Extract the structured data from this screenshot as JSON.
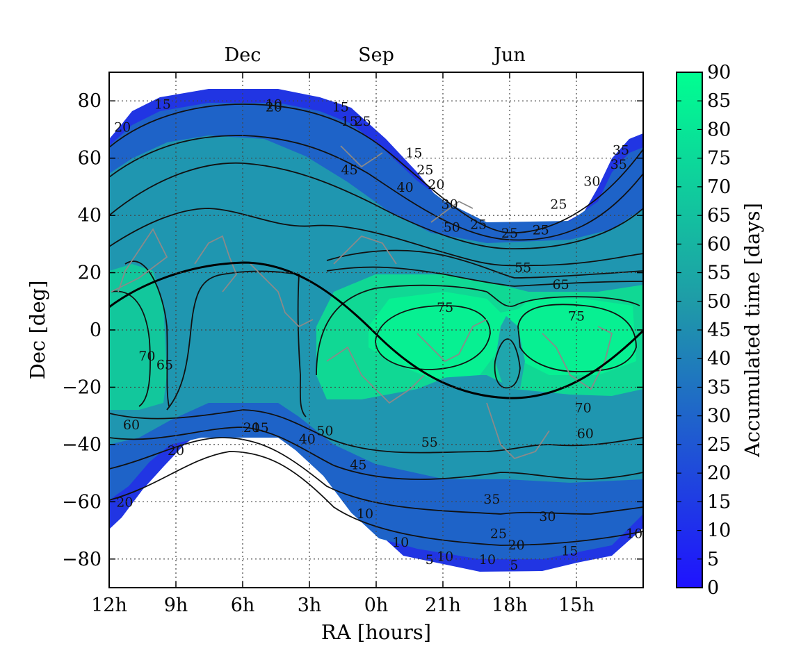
{
  "chart_data": {
    "type": "heatmap",
    "title": "",
    "xlabel": "RA [hours]",
    "ylabel": "Dec [deg]",
    "colorbar_label": "Accumulated time [days]",
    "x_direction": "decreasing",
    "xlim": [
      12,
      -12
    ],
    "ylim": [
      -90,
      90
    ],
    "x_ticks": [
      {
        "value": 12,
        "label": "12h"
      },
      {
        "value": 9,
        "label": "9h"
      },
      {
        "value": 6,
        "label": "6h"
      },
      {
        "value": 3,
        "label": "3h"
      },
      {
        "value": 0,
        "label": "0h"
      },
      {
        "value": -3,
        "label": "21h"
      },
      {
        "value": -6,
        "label": "18h"
      },
      {
        "value": -9,
        "label": "15h"
      }
    ],
    "y_ticks": [
      {
        "value": 80,
        "label": "80"
      },
      {
        "value": 60,
        "label": "60"
      },
      {
        "value": 40,
        "label": "40"
      },
      {
        "value": 20,
        "label": "20"
      },
      {
        "value": 0,
        "label": "0"
      },
      {
        "value": -20,
        "label": "−20"
      },
      {
        "value": -40,
        "label": "−40"
      },
      {
        "value": -60,
        "label": "−60"
      },
      {
        "value": -80,
        "label": "−80"
      }
    ],
    "top_ticks": [
      {
        "value": 6,
        "label": "Dec"
      },
      {
        "value": 0,
        "label": "Sep"
      },
      {
        "value": -6,
        "label": "Jun"
      }
    ],
    "colorbar": {
      "min": 0,
      "max": 90,
      "step": 5,
      "ticks": [
        "90",
        "85",
        "80",
        "75",
        "70",
        "65",
        "60",
        "55",
        "50",
        "45",
        "40",
        "35",
        "30",
        "25",
        "20",
        "15",
        "10",
        "5",
        "0"
      ],
      "color_low": "#1f12ff",
      "color_mid": "#1f9aa8",
      "color_high": "#00ff91"
    },
    "grid": true,
    "contour_levels": [
      5,
      10,
      15,
      20,
      25,
      30,
      35,
      40,
      45,
      50,
      55,
      60,
      65,
      70,
      75
    ],
    "contour_labels": [
      {
        "x": 4.6,
        "y": 79,
        "text": "10"
      },
      {
        "x": 4.6,
        "y": 78,
        "text": "20"
      },
      {
        "x": 9.6,
        "y": 79,
        "text": "15"
      },
      {
        "x": 11.4,
        "y": 71,
        "text": "20"
      },
      {
        "x": 1.6,
        "y": 78,
        "text": "15"
      },
      {
        "x": 1.2,
        "y": 73,
        "text": "15"
      },
      {
        "x": 0.6,
        "y": 73,
        "text": "25"
      },
      {
        "x": 1.2,
        "y": 56,
        "text": "45"
      },
      {
        "x": -1.3,
        "y": 50,
        "text": "40"
      },
      {
        "x": -1.7,
        "y": 62,
        "text": "15"
      },
      {
        "x": -2.2,
        "y": 56,
        "text": "25"
      },
      {
        "x": -2.7,
        "y": 51,
        "text": "20"
      },
      {
        "x": -3.3,
        "y": 44,
        "text": "30"
      },
      {
        "x": -4.6,
        "y": 37,
        "text": "25"
      },
      {
        "x": -6.0,
        "y": 34,
        "text": "25"
      },
      {
        "x": -7.4,
        "y": 35,
        "text": "25"
      },
      {
        "x": -8.2,
        "y": 44,
        "text": "25"
      },
      {
        "x": -9.7,
        "y": 52,
        "text": "30"
      },
      {
        "x": -10.9,
        "y": 58,
        "text": "35"
      },
      {
        "x": -11.0,
        "y": 63,
        "text": "35"
      },
      {
        "x": -3.4,
        "y": 36,
        "text": "50"
      },
      {
        "x": -6.6,
        "y": 22,
        "text": "55"
      },
      {
        "x": -8.3,
        "y": 16,
        "text": "65"
      },
      {
        "x": -3.1,
        "y": 8,
        "text": "75"
      },
      {
        "x": -9.0,
        "y": 5,
        "text": "75"
      },
      {
        "x": 10.3,
        "y": -9,
        "text": "70"
      },
      {
        "x": 9.5,
        "y": -12,
        "text": "65"
      },
      {
        "x": 11.0,
        "y": -33,
        "text": "60"
      },
      {
        "x": 9.0,
        "y": -42,
        "text": "20"
      },
      {
        "x": 5.6,
        "y": -34,
        "text": "20"
      },
      {
        "x": 5.2,
        "y": -34,
        "text": "15"
      },
      {
        "x": 3.1,
        "y": -38,
        "text": "40"
      },
      {
        "x": 2.3,
        "y": -35,
        "text": "50"
      },
      {
        "x": -2.4,
        "y": -39,
        "text": "55"
      },
      {
        "x": 0.8,
        "y": -47,
        "text": "45"
      },
      {
        "x": -9.3,
        "y": -27,
        "text": "70"
      },
      {
        "x": -9.4,
        "y": -36,
        "text": "60"
      },
      {
        "x": -5.2,
        "y": -59,
        "text": "35"
      },
      {
        "x": -7.7,
        "y": -65,
        "text": "30"
      },
      {
        "x": -5.5,
        "y": -71,
        "text": "25"
      },
      {
        "x": -6.3,
        "y": -75,
        "text": "20"
      },
      {
        "x": -8.7,
        "y": -77,
        "text": "15"
      },
      {
        "x": -5.0,
        "y": -80,
        "text": "10"
      },
      {
        "x": -6.2,
        "y": -82,
        "text": "5"
      },
      {
        "x": -3.1,
        "y": -79,
        "text": "10"
      },
      {
        "x": -2.4,
        "y": -80,
        "text": "5"
      },
      {
        "x": -1.1,
        "y": -74,
        "text": "10"
      },
      {
        "x": 0.5,
        "y": -64,
        "text": "10"
      },
      {
        "x": 11.3,
        "y": -60,
        "text": "20"
      },
      {
        "x": -11.6,
        "y": -71,
        "text": "10"
      }
    ],
    "ecliptic": true
  }
}
